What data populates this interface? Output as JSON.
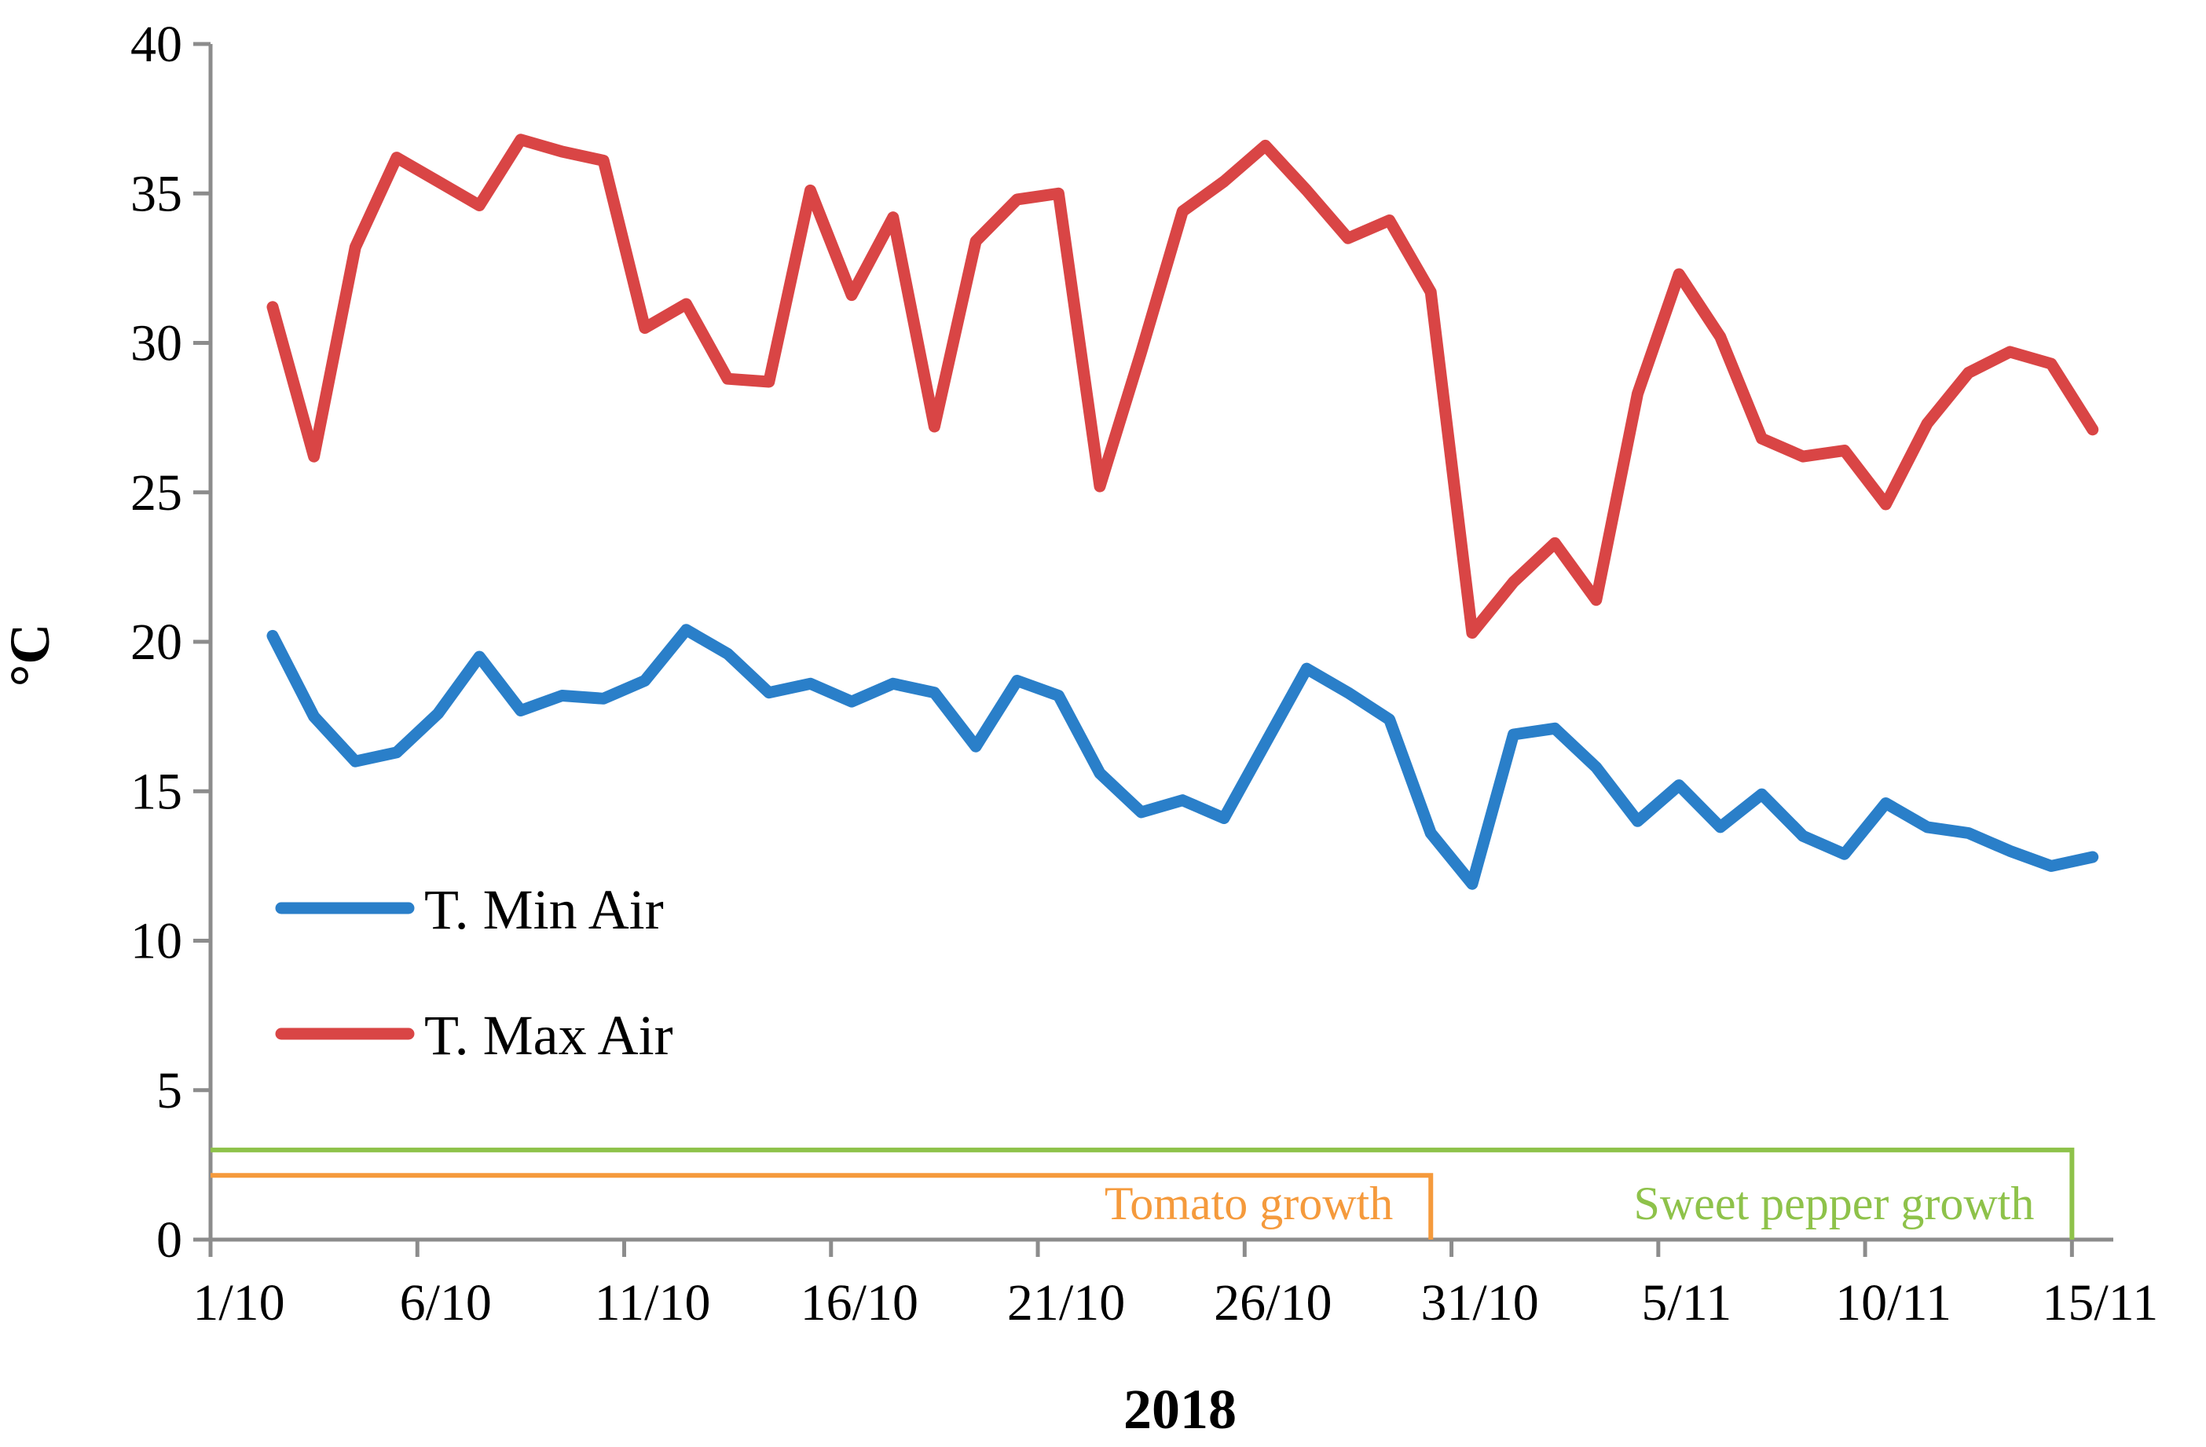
{
  "chart_data": {
    "type": "line",
    "title": "",
    "xlabel": "2018",
    "ylabel": "°C",
    "ylim": [
      0,
      40
    ],
    "yticks": [
      0,
      5,
      10,
      15,
      20,
      25,
      30,
      35,
      40
    ],
    "x_day_range": [
      1,
      47
    ],
    "xticks": [
      {
        "label": "1/10",
        "day": 1
      },
      {
        "label": "6/10",
        "day": 6
      },
      {
        "label": "11/10",
        "day": 11
      },
      {
        "label": "16/10",
        "day": 16
      },
      {
        "label": "21/10",
        "day": 21
      },
      {
        "label": "26/10",
        "day": 26
      },
      {
        "label": "31/10",
        "day": 31
      },
      {
        "label": "5/11",
        "day": 36
      },
      {
        "label": "10/11",
        "day": 41
      },
      {
        "label": "15/11",
        "day": 46
      }
    ],
    "series": [
      {
        "name": "T. Min Air",
        "color": "#2a7fc9",
        "start_day": 2.5,
        "values": [
          20.2,
          17.5,
          16.0,
          16.3,
          17.6,
          19.5,
          17.7,
          18.2,
          18.1,
          18.7,
          20.4,
          19.6,
          18.3,
          18.6,
          18.0,
          18.6,
          18.3,
          16.5,
          18.7,
          18.2,
          15.6,
          14.3,
          14.7,
          14.1,
          16.6,
          19.1,
          18.3,
          17.4,
          13.6,
          11.9,
          16.9,
          17.1,
          15.8,
          14.0,
          15.2,
          13.8,
          14.9,
          13.5,
          12.9,
          14.6,
          13.8,
          13.6,
          13.0,
          12.5,
          12.8
        ]
      },
      {
        "name": "T. Max Air",
        "color": "#d94545",
        "start_day": 2.5,
        "values": [
          31.2,
          26.2,
          33.2,
          36.2,
          35.4,
          34.6,
          36.8,
          36.4,
          36.1,
          30.5,
          31.3,
          28.8,
          28.7,
          35.1,
          31.6,
          34.2,
          27.2,
          33.4,
          34.8,
          35.0,
          25.2,
          29.7,
          34.4,
          35.4,
          36.6,
          35.1,
          33.5,
          34.1,
          31.7,
          20.3,
          22.0,
          23.3,
          21.4,
          28.3,
          32.3,
          30.2,
          26.8,
          26.2,
          26.4,
          24.6,
          27.3,
          29.0,
          29.7,
          29.3,
          27.1
        ]
      }
    ],
    "legend_position": "lower-left",
    "periods": [
      {
        "label": "Tomato growth",
        "color": "#f59a3c",
        "start_day": 1,
        "end_day": 30.5,
        "level": 2.15
      },
      {
        "label": "Sweet pepper growth",
        "color": "#8ec24a",
        "start_day": 1,
        "end_day": 46,
        "level": 3.0
      }
    ]
  }
}
